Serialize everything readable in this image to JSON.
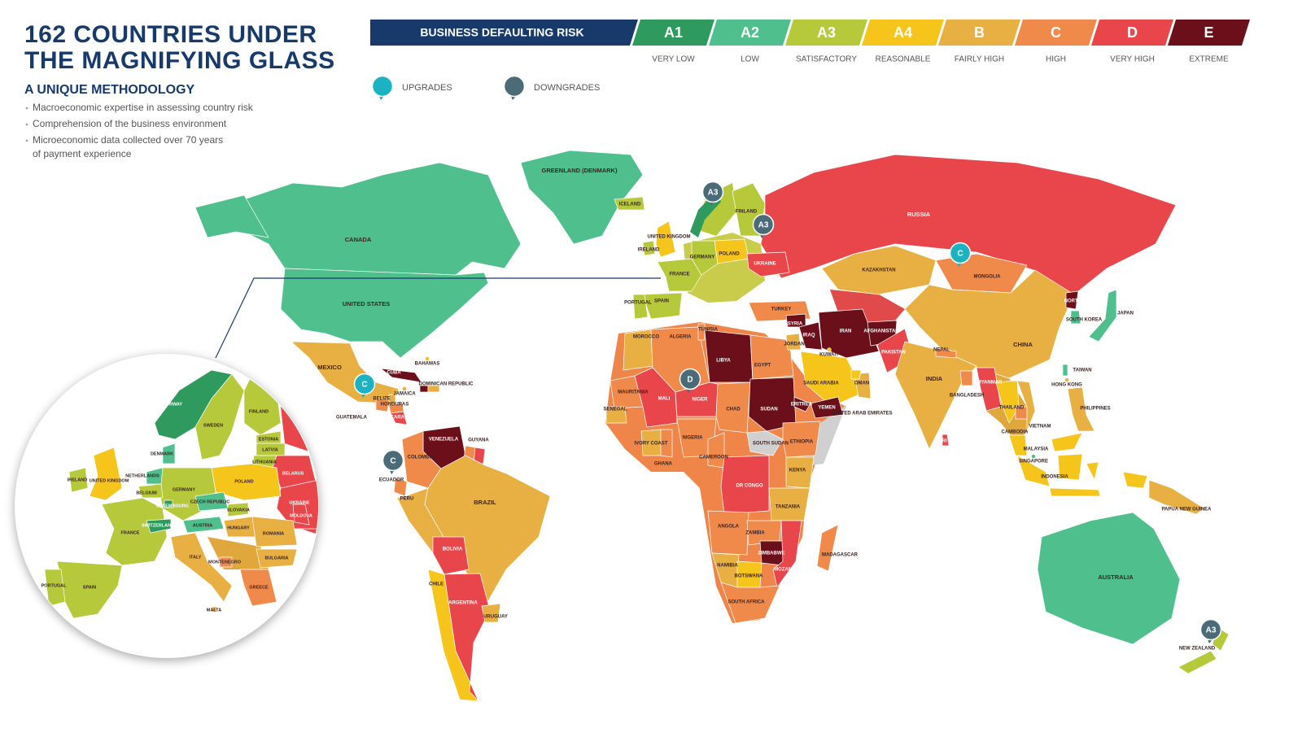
{
  "header": {
    "title_lines": [
      "162 COUNTRIES UNDER",
      "THE MAGNIFYING GLASS"
    ],
    "subtitle": "A UNIQUE METHODOLOGY",
    "bullets": [
      [
        "Macroeconomic expertise in assessing country risk"
      ],
      [
        "Comprehension of the business environment"
      ],
      [
        "Microeconomic data collected over 70 years",
        "of payment experience"
      ]
    ]
  },
  "legend": {
    "title": "BUSINESS DEFAULTING RISK",
    "title_color": "#173a6b",
    "levels": [
      {
        "code": "A1",
        "label": "VERY LOW",
        "color": "#2f9a5e"
      },
      {
        "code": "A2",
        "label": "LOW",
        "color": "#4fc08d"
      },
      {
        "code": "A3",
        "label": "SATISFACTORY",
        "color": "#b5c93a"
      },
      {
        "code": "A4",
        "label": "REASONABLE",
        "color": "#f6c51b"
      },
      {
        "code": "B",
        "label": "FAIRLY HIGH",
        "color": "#e8b043"
      },
      {
        "code": "C",
        "label": "HIGH",
        "color": "#f08a4b"
      },
      {
        "code": "D",
        "label": "VERY HIGH",
        "color": "#e8464a"
      },
      {
        "code": "E",
        "label": "EXTREME",
        "color": "#6b0f1a"
      }
    ]
  },
  "changes": {
    "upgrades": {
      "label": "UPGRADES",
      "color": "#1bb3c1"
    },
    "downgrades": {
      "label": "DOWNGRADES",
      "color": "#4b6b79"
    }
  },
  "markers": [
    {
      "rating": "A3",
      "kind": "downgrades"
    },
    {
      "rating": "A3",
      "kind": "downgrades"
    },
    {
      "rating": "C",
      "kind": "upgrades"
    },
    {
      "rating": "D",
      "kind": "downgrades"
    },
    {
      "rating": "C",
      "kind": "upgrades"
    },
    {
      "rating": "C",
      "kind": "downgrades"
    },
    {
      "rating": "A3",
      "kind": "downgrades"
    }
  ],
  "countries": [
    {
      "name": "CANADA",
      "rating": "A2"
    },
    {
      "name": "UNITED STATES",
      "rating": "A2"
    },
    {
      "name": "GREENLAND (DENMARK)",
      "rating": "A2"
    },
    {
      "name": "MEXICO",
      "rating": "B"
    },
    {
      "name": "CUBA",
      "rating": "E"
    },
    {
      "name": "BAHAMAS",
      "rating": "A4"
    },
    {
      "name": "BELIZE",
      "rating": "B"
    },
    {
      "name": "GUATEMALA",
      "rating": "C"
    },
    {
      "name": "HONDURAS",
      "rating": "C"
    },
    {
      "name": "NICARAGUA",
      "rating": "D"
    },
    {
      "name": "JAMAICA",
      "rating": "B"
    },
    {
      "name": "HAITI",
      "rating": "E"
    },
    {
      "name": "DOMINICAN REPUBLIC",
      "rating": "B"
    },
    {
      "name": "VENEZUELA",
      "rating": "E"
    },
    {
      "name": "COLOMBIA",
      "rating": "C"
    },
    {
      "name": "GUYANA",
      "rating": "C"
    },
    {
      "name": "SURINAME",
      "rating": "D"
    },
    {
      "name": "ECUADOR",
      "rating": "C"
    },
    {
      "name": "PERU",
      "rating": "B"
    },
    {
      "name": "BRAZIL",
      "rating": "B"
    },
    {
      "name": "BOLIVIA",
      "rating": "D"
    },
    {
      "name": "CHILE",
      "rating": "A4"
    },
    {
      "name": "ARGENTINA",
      "rating": "D"
    },
    {
      "name": "URUGUAY",
      "rating": "B"
    },
    {
      "name": "ICELAND",
      "rating": "A3"
    },
    {
      "name": "FINLAND",
      "rating": "A3"
    },
    {
      "name": "RUSSIA",
      "rating": "D"
    },
    {
      "name": "UNITED KINGDOM",
      "rating": "A4"
    },
    {
      "name": "IRELAND",
      "rating": "A3"
    },
    {
      "name": "POLAND",
      "rating": "A4"
    },
    {
      "name": "FRANCE",
      "rating": "A3"
    },
    {
      "name": "GERMANY",
      "rating": "A3"
    },
    {
      "name": "UKRAINE",
      "rating": "D"
    },
    {
      "name": "SPAIN",
      "rating": "A3"
    },
    {
      "name": "PORTUGAL",
      "rating": "A3"
    },
    {
      "name": "TURKEY",
      "rating": "C"
    },
    {
      "name": "KAZAKHSTAN",
      "rating": "B"
    },
    {
      "name": "MONGOLIA",
      "rating": "C"
    },
    {
      "name": "CHINA",
      "rating": "B"
    },
    {
      "name": "NORTH KOREA",
      "rating": "E"
    },
    {
      "name": "SOUTH KOREA",
      "rating": "A2"
    },
    {
      "name": "JAPAN",
      "rating": "A2"
    },
    {
      "name": "MOROCCO",
      "rating": "B"
    },
    {
      "name": "ALGERIA",
      "rating": "C"
    },
    {
      "name": "TUNISIA",
      "rating": "C"
    },
    {
      "name": "LIBYA",
      "rating": "E"
    },
    {
      "name": "EGYPT",
      "rating": "C"
    },
    {
      "name": "SYRIA",
      "rating": "E"
    },
    {
      "name": "IRAQ",
      "rating": "E"
    },
    {
      "name": "IRAN",
      "rating": "E"
    },
    {
      "name": "AFGHANISTAN",
      "rating": "E"
    },
    {
      "name": "PAKISTAN",
      "rating": "D"
    },
    {
      "name": "JORDAN",
      "rating": "B"
    },
    {
      "name": "KUWAIT",
      "rating": "A4"
    },
    {
      "name": "SAUDI ARABIA",
      "rating": "A4"
    },
    {
      "name": "OMAN",
      "rating": "B"
    },
    {
      "name": "YEMEN",
      "rating": "E"
    },
    {
      "name": "UNITED ARAB EMIRATES",
      "rating": "A4"
    },
    {
      "name": "INDIA",
      "rating": "B"
    },
    {
      "name": "NEPAL",
      "rating": "C"
    },
    {
      "name": "BANGLADESH",
      "rating": "C"
    },
    {
      "name": "MYANMAR",
      "rating": "D"
    },
    {
      "name": "THAILAND",
      "rating": "A4"
    },
    {
      "name": "CAMBODIA",
      "rating": "C"
    },
    {
      "name": "VIETNAM",
      "rating": "B"
    },
    {
      "name": "SRI LANKA",
      "rating": "D"
    },
    {
      "name": "MALAYSIA",
      "rating": "A4"
    },
    {
      "name": "SINGAPORE",
      "rating": "A2"
    },
    {
      "name": "INDONESIA",
      "rating": "A4"
    },
    {
      "name": "PHILIPPINES",
      "rating": "B"
    },
    {
      "name": "TAIWAN",
      "rating": "A2"
    },
    {
      "name": "HONG KONG",
      "rating": "B"
    },
    {
      "name": "PAPUA NEW GUINEA",
      "rating": "B"
    },
    {
      "name": "AUSTRALIA",
      "rating": "A2"
    },
    {
      "name": "NEW ZEALAND",
      "rating": "A3"
    },
    {
      "name": "MAURITANIA",
      "rating": "C"
    },
    {
      "name": "SENEGAL",
      "rating": "B"
    },
    {
      "name": "MALI",
      "rating": "D"
    },
    {
      "name": "NIGER",
      "rating": "D"
    },
    {
      "name": "CHAD",
      "rating": "C"
    },
    {
      "name": "SUDAN",
      "rating": "E"
    },
    {
      "name": "SOUTH SUDAN"
    },
    {
      "name": "ERITREA",
      "rating": "E"
    },
    {
      "name": "ETHIOPIA",
      "rating": "C"
    },
    {
      "name": "IVORY COAST",
      "rating": "B"
    },
    {
      "name": "GHANA",
      "rating": "C"
    },
    {
      "name": "NIGERIA",
      "rating": "C"
    },
    {
      "name": "CAMEROON",
      "rating": "C"
    },
    {
      "name": "DR CONGO",
      "rating": "D"
    },
    {
      "name": "KENYA",
      "rating": "B"
    },
    {
      "name": "TANZANIA",
      "rating": "B"
    },
    {
      "name": "ANGOLA",
      "rating": "C"
    },
    {
      "name": "ZAMBIA",
      "rating": "C"
    },
    {
      "name": "ZIMBABWE",
      "rating": "E"
    },
    {
      "name": "NAMIBIA",
      "rating": "B"
    },
    {
      "name": "BOTSWANA",
      "rating": "A4"
    },
    {
      "name": "MOZAMBIQUE",
      "rating": "D"
    },
    {
      "name": "SOUTH AFRICA",
      "rating": "C"
    },
    {
      "name": "MADAGASCAR",
      "rating": "C"
    }
  ],
  "zoom_countries": [
    {
      "name": "NORWAY",
      "rating": "A1"
    },
    {
      "name": "SWEDEN",
      "rating": "A3"
    },
    {
      "name": "FINLAND",
      "rating": "A3"
    },
    {
      "name": "ESTONIA",
      "rating": "A3"
    },
    {
      "name": "LATVIA",
      "rating": "A3"
    },
    {
      "name": "LITHUANIA",
      "rating": "A3"
    },
    {
      "name": "BELARUS",
      "rating": "D"
    },
    {
      "name": "UKRAINE",
      "rating": "D"
    },
    {
      "name": "MOLDOVA",
      "rating": "D"
    },
    {
      "name": "POLAND",
      "rating": "A4"
    },
    {
      "name": "GERMANY",
      "rating": "A3"
    },
    {
      "name": "DENMARK",
      "rating": "A2"
    },
    {
      "name": "NETHERLANDS",
      "rating": "A2"
    },
    {
      "name": "BELGIUM",
      "rating": "A3"
    },
    {
      "name": "LUXEMBOURG",
      "rating": "A1"
    },
    {
      "name": "UNITED KINGDOM",
      "rating": "A4"
    },
    {
      "name": "IRELAND",
      "rating": "A3"
    },
    {
      "name": "FRANCE",
      "rating": "A3"
    },
    {
      "name": "SWITZERLAND",
      "rating": "A1"
    },
    {
      "name": "SPAIN",
      "rating": "A3"
    },
    {
      "name": "PORTUGAL",
      "rating": "A3"
    },
    {
      "name": "ITALY",
      "rating": "B"
    },
    {
      "name": "AUSTRIA",
      "rating": "A2"
    },
    {
      "name": "CZECH REPUBLIC",
      "rating": "A2"
    },
    {
      "name": "SLOVAKIA",
      "rating": "A3"
    },
    {
      "name": "HUNGARY",
      "rating": "B"
    },
    {
      "name": "ROMANIA",
      "rating": "B"
    },
    {
      "name": "BULGARIA",
      "rating": "B"
    },
    {
      "name": "MONTENEGRO",
      "rating": "C"
    },
    {
      "name": "GREECE",
      "rating": "C"
    },
    {
      "name": "MALTA",
      "rating": "B"
    }
  ]
}
